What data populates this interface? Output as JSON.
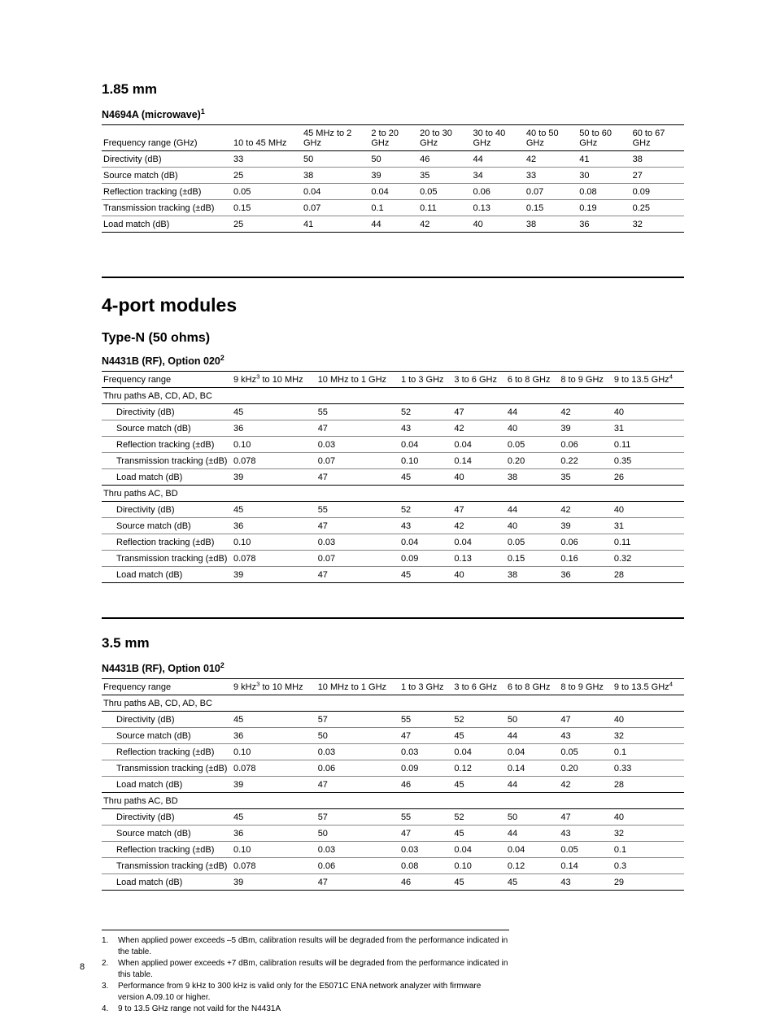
{
  "section1": {
    "title": "1.85 mm",
    "table_title": "N4694A (microwave)",
    "table_title_sup": "1",
    "headers": [
      "Frequency range (GHz)",
      "10 to 45 MHz",
      "45 MHz to 2 GHz",
      "2 to 20 GHz",
      "20 to 30 GHz",
      "30 to 40 GHz",
      "40 to 50 GHz",
      "50 to 60 GHz",
      "60 to 67 GHz"
    ],
    "rows": [
      [
        "Directivity (dB)",
        "33",
        "50",
        "50",
        "46",
        "44",
        "42",
        "41",
        "38"
      ],
      [
        "Source match (dB)",
        "25",
        "38",
        "39",
        "35",
        "34",
        "33",
        "30",
        "27"
      ],
      [
        "Reflection tracking (±dB)",
        "0.05",
        "0.04",
        "0.04",
        "0.05",
        "0.06",
        "0.07",
        "0.08",
        "0.09"
      ],
      [
        "Transmission tracking (±dB)",
        "0.15",
        "0.07",
        "0.1",
        "0.11",
        "0.13",
        "0.15",
        "0.19",
        "0.25"
      ],
      [
        "Load match (dB)",
        "25",
        "41",
        "44",
        "42",
        "40",
        "38",
        "36",
        "32"
      ]
    ]
  },
  "section2": {
    "major_title": "4-port modules",
    "sub_title": "Type-N (50 ohms)",
    "table_title": "N4431B (RF), Option 020",
    "table_title_sup": "2",
    "headers": {
      "c0": "Frequency range",
      "c1_pre": "9 kHz",
      "c1_sup": "3",
      "c1_post": " to 10 MHz",
      "c2": "10 MHz to 1 GHz",
      "c3": "1 to 3 GHz",
      "c4": "3 to 6 GHz",
      "c5": "6 to 8 GHz",
      "c6": "8 to 9 GHz",
      "c7_pre": "9 to 13.5 GHz",
      "c7_sup": "4"
    },
    "group1_label": "Thru paths AB, CD, AD, BC",
    "group1_rows": [
      [
        "Directivity (dB)",
        "45",
        "55",
        "52",
        "47",
        "44",
        "42",
        "40"
      ],
      [
        "Source match (dB)",
        "36",
        "47",
        "43",
        "42",
        "40",
        "39",
        "31"
      ],
      [
        "Reflection tracking (±dB)",
        "0.10",
        "0.03",
        "0.04",
        "0.04",
        "0.05",
        "0.06",
        "0.11"
      ],
      [
        "Transmission tracking (±dB)",
        "0.078",
        "0.07",
        "0.10",
        "0.14",
        "0.20",
        "0.22",
        "0.35"
      ],
      [
        "Load match (dB)",
        "39",
        "47",
        "45",
        "40",
        "38",
        "35",
        "26"
      ]
    ],
    "group2_label": "Thru paths AC, BD",
    "group2_rows": [
      [
        "Directivity (dB)",
        "45",
        "55",
        "52",
        "47",
        "44",
        "42",
        "40"
      ],
      [
        "Source match (dB)",
        "36",
        "47",
        "43",
        "42",
        "40",
        "39",
        "31"
      ],
      [
        "Reflection tracking (±dB)",
        "0.10",
        "0.03",
        "0.04",
        "0.04",
        "0.05",
        "0.06",
        "0.11"
      ],
      [
        "Transmission tracking (±dB)",
        "0.078",
        "0.07",
        "0.09",
        "0.13",
        "0.15",
        "0.16",
        "0.32"
      ],
      [
        "Load match (dB)",
        "39",
        "47",
        "45",
        "40",
        "38",
        "36",
        "28"
      ]
    ]
  },
  "section3": {
    "title": "3.5 mm",
    "table_title": "N4431B (RF), Option 010",
    "table_title_sup": "2",
    "headers": {
      "c0": "Frequency range",
      "c1_pre": "9 kHz",
      "c1_sup": "3",
      "c1_post": " to 10 MHz",
      "c2": "10 MHz to 1 GHz",
      "c3": "1 to 3 GHz",
      "c4": "3 to 6 GHz",
      "c5": "6 to 8 GHz",
      "c6": "8 to 9 GHz",
      "c7_pre": "9 to 13.5 GHz",
      "c7_sup": "4"
    },
    "group1_label": "Thru paths AB, CD, AD, BC",
    "group1_rows": [
      [
        "Directivity (dB)",
        "45",
        "57",
        "55",
        "52",
        "50",
        "47",
        "40"
      ],
      [
        "Source match (dB)",
        "36",
        "50",
        "47",
        "45",
        "44",
        "43",
        "32"
      ],
      [
        "Reflection tracking (±dB)",
        "0.10",
        "0.03",
        "0.03",
        "0.04",
        "0.04",
        "0.05",
        "0.1"
      ],
      [
        "Transmission tracking (±dB)",
        "0.078",
        "0.06",
        "0.09",
        "0.12",
        "0.14",
        "0.20",
        "0.33"
      ],
      [
        "Load match (dB)",
        "39",
        "47",
        "46",
        "45",
        "44",
        "42",
        "28"
      ]
    ],
    "group2_label": "Thru paths AC, BD",
    "group2_rows": [
      [
        "Directivity (dB)",
        "45",
        "57",
        "55",
        "52",
        "50",
        "47",
        "40"
      ],
      [
        "Source match (dB)",
        "36",
        "50",
        "47",
        "45",
        "44",
        "43",
        "32"
      ],
      [
        "Reflection tracking (±dB)",
        "0.10",
        "0.03",
        "0.03",
        "0.04",
        "0.04",
        "0.05",
        "0.1"
      ],
      [
        "Transmission tracking (±dB)",
        "0.078",
        "0.06",
        "0.08",
        "0.10",
        "0.12",
        "0.14",
        "0.3"
      ],
      [
        "Load match (dB)",
        "39",
        "47",
        "46",
        "45",
        "45",
        "43",
        "29"
      ]
    ]
  },
  "footnotes": [
    {
      "n": "1.",
      "t": "When applied power exceeds –5 dBm, calibration results will be degraded from the performance indicated in the table."
    },
    {
      "n": "2.",
      "t": "When applied power exceeds +7 dBm, calibration results will be degraded from the performance indicated in this table."
    },
    {
      "n": "3.",
      "t": "Performance from 9 kHz to 300 kHz is valid only for the E5071C ENA network analyzer with firmware version A.09.10 or higher."
    },
    {
      "n": "4.",
      "t": "9 to 13.5 GHz range not vaild for the N4431A"
    }
  ],
  "page_number": "8"
}
